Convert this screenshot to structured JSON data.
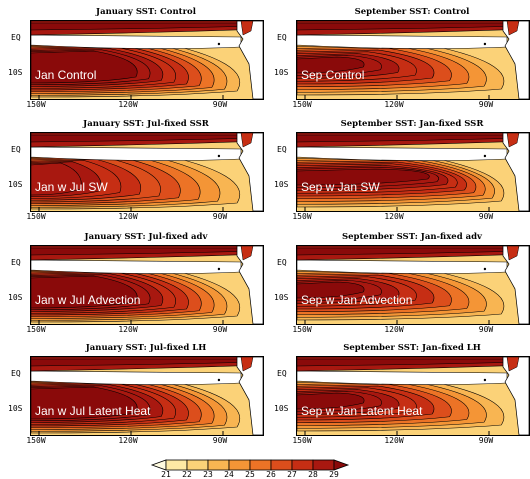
{
  "y_labels": [
    "EQ",
    "10S"
  ],
  "x_labels": [
    "150W",
    "120W",
    "90W"
  ],
  "panels": [
    {
      "title": "January SST: Control",
      "label": "Jan Control",
      "month": "jan",
      "variant": "control"
    },
    {
      "title": "September SST: Control",
      "label": "Sep Control",
      "month": "sep",
      "variant": "control"
    },
    {
      "title": "January SST: Jul-fixed SSR",
      "label": "Jan w Jul SW",
      "month": "jan",
      "variant": "cool"
    },
    {
      "title": "September SST: Jan-fixed SSR",
      "label": "Sep w Jan SW",
      "month": "sep",
      "variant": "warm"
    },
    {
      "title": "January SST: Jul-fixed adv",
      "label": "Jan w Jul Advection",
      "month": "jan",
      "variant": "control"
    },
    {
      "title": "September SST: Jan-fixed adv",
      "label": "Sep w Jan Advection",
      "month": "sep",
      "variant": "control"
    },
    {
      "title": "January SST: Jul-fixed LH",
      "label": "Jan w Jul Latent Heat",
      "month": "jan",
      "variant": "control"
    },
    {
      "title": "September SST: Jan-fixed LH",
      "label": "Sep w Jan Latent Heat",
      "month": "sep",
      "variant": "control"
    }
  ],
  "colorbar": {
    "levels": [
      "21",
      "22",
      "23",
      "24",
      "25",
      "26",
      "27",
      "28",
      "29"
    ],
    "colors": [
      "#fffbe0",
      "#fde9a4",
      "#fbd278",
      "#f8b552",
      "#f49536",
      "#ec7326",
      "#dc4e1c",
      "#c62e14",
      "#a81810",
      "#8a0a0a"
    ]
  }
}
